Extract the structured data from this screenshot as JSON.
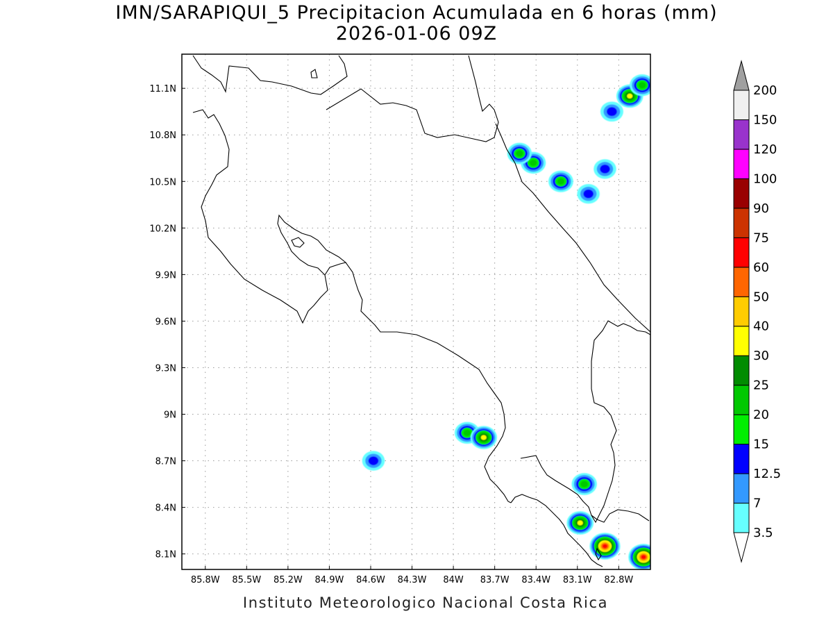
{
  "title": {
    "line1": "IMN/SARAPIQUI_5 Precipitacion Acumulada en 6 horas (mm)",
    "line2": "2026-01-06 09Z"
  },
  "footer": "Instituto Meteorologico Nacional Costa Rica",
  "map": {
    "lon_range": [
      -85.97,
      -82.57
    ],
    "lat_range": [
      8.0,
      11.32
    ],
    "lon_ticks": [
      -85.8,
      -85.5,
      -85.2,
      -84.9,
      -84.6,
      -84.3,
      -84.0,
      -83.7,
      -83.4,
      -83.1,
      -82.8
    ],
    "lon_tick_labels": [
      "85.8W",
      "85.5W",
      "85.2W",
      "84.9W",
      "84.6W",
      "84.3W",
      "84W",
      "83.7W",
      "83.4W",
      "83.1W",
      "82.8W"
    ],
    "lat_ticks": [
      8.1,
      8.4,
      8.7,
      9.0,
      9.3,
      9.6,
      9.9,
      10.2,
      10.5,
      10.8,
      11.1
    ],
    "lat_tick_labels": [
      "8.1N",
      "8.4N",
      "8.7N",
      "9N",
      "9.3N",
      "9.6N",
      "9.9N",
      "10.2N",
      "10.5N",
      "10.8N",
      "11.1N"
    ],
    "grid": "dotted",
    "precip_cells": [
      {
        "lon": -82.72,
        "lat": 11.05,
        "value": 32
      },
      {
        "lon": -82.63,
        "lat": 11.12,
        "value": 22
      },
      {
        "lon": -82.85,
        "lat": 10.95,
        "value": 14
      },
      {
        "lon": -83.42,
        "lat": 10.62,
        "value": 22
      },
      {
        "lon": -83.52,
        "lat": 10.68,
        "value": 20
      },
      {
        "lon": -83.22,
        "lat": 10.5,
        "value": 21
      },
      {
        "lon": -83.02,
        "lat": 10.42,
        "value": 13
      },
      {
        "lon": -82.9,
        "lat": 10.58,
        "value": 13
      },
      {
        "lon": -83.9,
        "lat": 8.88,
        "value": 22
      },
      {
        "lon": -83.78,
        "lat": 8.85,
        "value": 31
      },
      {
        "lon": -84.58,
        "lat": 8.7,
        "value": 13
      },
      {
        "lon": -83.05,
        "lat": 8.55,
        "value": 23
      },
      {
        "lon": -83.08,
        "lat": 8.3,
        "value": 32
      },
      {
        "lon": -82.9,
        "lat": 8.15,
        "value": 72
      },
      {
        "lon": -82.62,
        "lat": 8.08,
        "value": 66
      }
    ]
  },
  "colorbar": {
    "labels": [
      "3.5",
      "7",
      "12.5",
      "15",
      "20",
      "25",
      "30",
      "40",
      "50",
      "60",
      "75",
      "90",
      "100",
      "120",
      "150",
      "200"
    ],
    "colors": [
      "#66ffff",
      "#3399ff",
      "#0000ff",
      "#00ee00",
      "#00c800",
      "#008c00",
      "#ffff00",
      "#ffcc00",
      "#ff6600",
      "#ff0000",
      "#cc3300",
      "#990000",
      "#ff00ff",
      "#9933cc",
      "#f0f0f0"
    ],
    "under_color": "#ffffff",
    "over_color": "#a0a0a0"
  }
}
